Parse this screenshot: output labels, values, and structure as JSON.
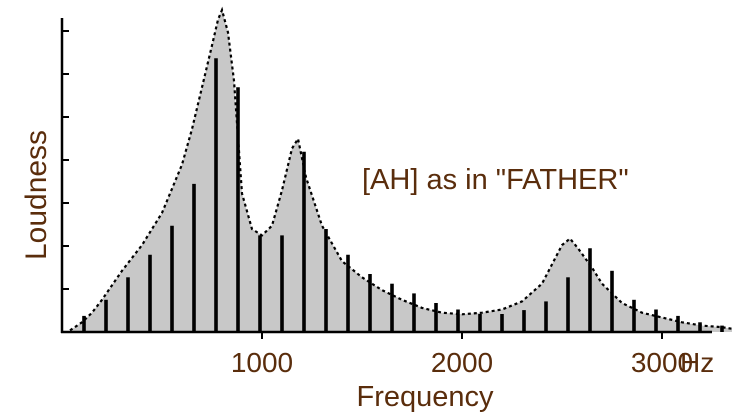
{
  "chart_data": {
    "type": "bar",
    "title": "",
    "annotation": "[AH] as in \"FATHER\"",
    "xlabel": "Frequency",
    "ylabel": "Loudness",
    "x_unit": "Hz",
    "xlim": [
      0,
      3500
    ],
    "ylim": [
      0,
      1.0
    ],
    "x_ticks": [
      1000,
      2000,
      3000
    ],
    "x_tick_labels": [
      "1000",
      "2000",
      "3000"
    ],
    "y_ticks_count": 8,
    "grid": false,
    "legend": "none",
    "colors": {
      "envelope_fill": "#c8c8c8",
      "harmonic": "#000000",
      "axis": "#000000",
      "text": "#5a2d0c"
    },
    "envelope": {
      "x": [
        40,
        100,
        150,
        200,
        300,
        400,
        500,
        600,
        650,
        700,
        750,
        780,
        800,
        830,
        860,
        900,
        950,
        1000,
        1050,
        1100,
        1150,
        1180,
        1220,
        1300,
        1400,
        1500,
        1600,
        1700,
        1800,
        1900,
        2000,
        2100,
        2200,
        2300,
        2400,
        2450,
        2500,
        2540,
        2580,
        2650,
        2700,
        2800,
        2900,
        3000,
        3100,
        3200,
        3300,
        3400
      ],
      "y": [
        0.005,
        0.03,
        0.06,
        0.1,
        0.19,
        0.27,
        0.37,
        0.52,
        0.63,
        0.76,
        0.89,
        0.97,
        1.0,
        0.93,
        0.78,
        0.43,
        0.32,
        0.3,
        0.33,
        0.44,
        0.57,
        0.6,
        0.48,
        0.33,
        0.22,
        0.17,
        0.13,
        0.1,
        0.075,
        0.06,
        0.055,
        0.06,
        0.07,
        0.095,
        0.15,
        0.21,
        0.27,
        0.29,
        0.26,
        0.2,
        0.15,
        0.09,
        0.06,
        0.045,
        0.03,
        0.02,
        0.015,
        0.005
      ]
    },
    "harmonics": {
      "fundamental_hz": 110,
      "x": [
        110,
        220,
        330,
        440,
        550,
        660,
        770,
        880,
        990,
        1100,
        1210,
        1320,
        1430,
        1540,
        1650,
        1760,
        1870,
        1980,
        2090,
        2200,
        2310,
        2420,
        2530,
        2640,
        2750,
        2860,
        2970,
        3080,
        3190,
        3300
      ],
      "values": [
        0.05,
        0.1,
        0.17,
        0.24,
        0.33,
        0.46,
        0.85,
        0.76,
        0.3,
        0.3,
        0.56,
        0.32,
        0.24,
        0.18,
        0.15,
        0.12,
        0.09,
        0.07,
        0.056,
        0.056,
        0.068,
        0.095,
        0.17,
        0.26,
        0.19,
        0.1,
        0.07,
        0.05,
        0.03,
        0.02
      ]
    }
  }
}
